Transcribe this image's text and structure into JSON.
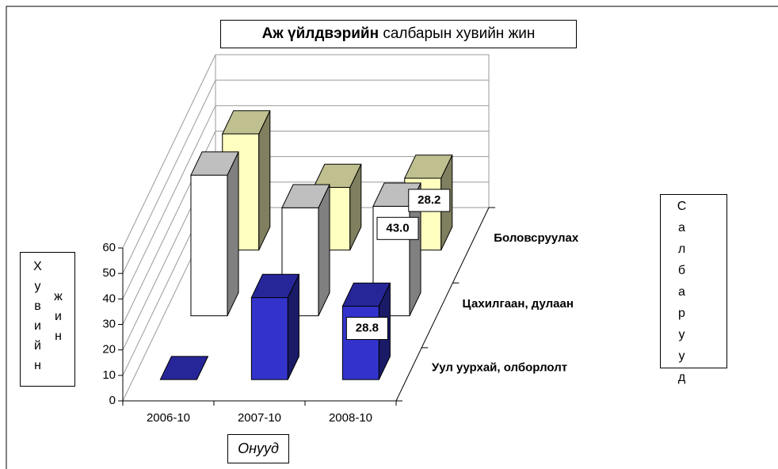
{
  "chart_data": {
    "type": "bar3d",
    "title": [
      "Аж үйлдвэрийн",
      "салбарын хувийн жин"
    ],
    "x_label": "Онууд",
    "y_label": "Хувийн жин",
    "z_label": "Салбарууд",
    "categories": [
      "2006-10",
      "2007-10",
      "2008-10"
    ],
    "series": [
      {
        "name": "Уул уурхай, олборлолт",
        "color": "#3333cc",
        "values": [
          0,
          32.2,
          28.8
        ],
        "value_labels": [
          null,
          null,
          "28.8"
        ]
      },
      {
        "name": "Цахилгаан, дулаан",
        "color": "#ffffff",
        "values": [
          55.2,
          42.4,
          43.0
        ],
        "value_labels": [
          null,
          null,
          "43.0"
        ]
      },
      {
        "name": "Боловсруулах",
        "color": "#ffffc0",
        "values": [
          45.6,
          24.6,
          28.2
        ],
        "value_labels": [
          null,
          null,
          "28.2"
        ]
      }
    ],
    "ylim": [
      0,
      60
    ],
    "yticks": [
      0,
      10,
      20,
      30,
      40,
      50,
      60
    ],
    "grid": true
  }
}
